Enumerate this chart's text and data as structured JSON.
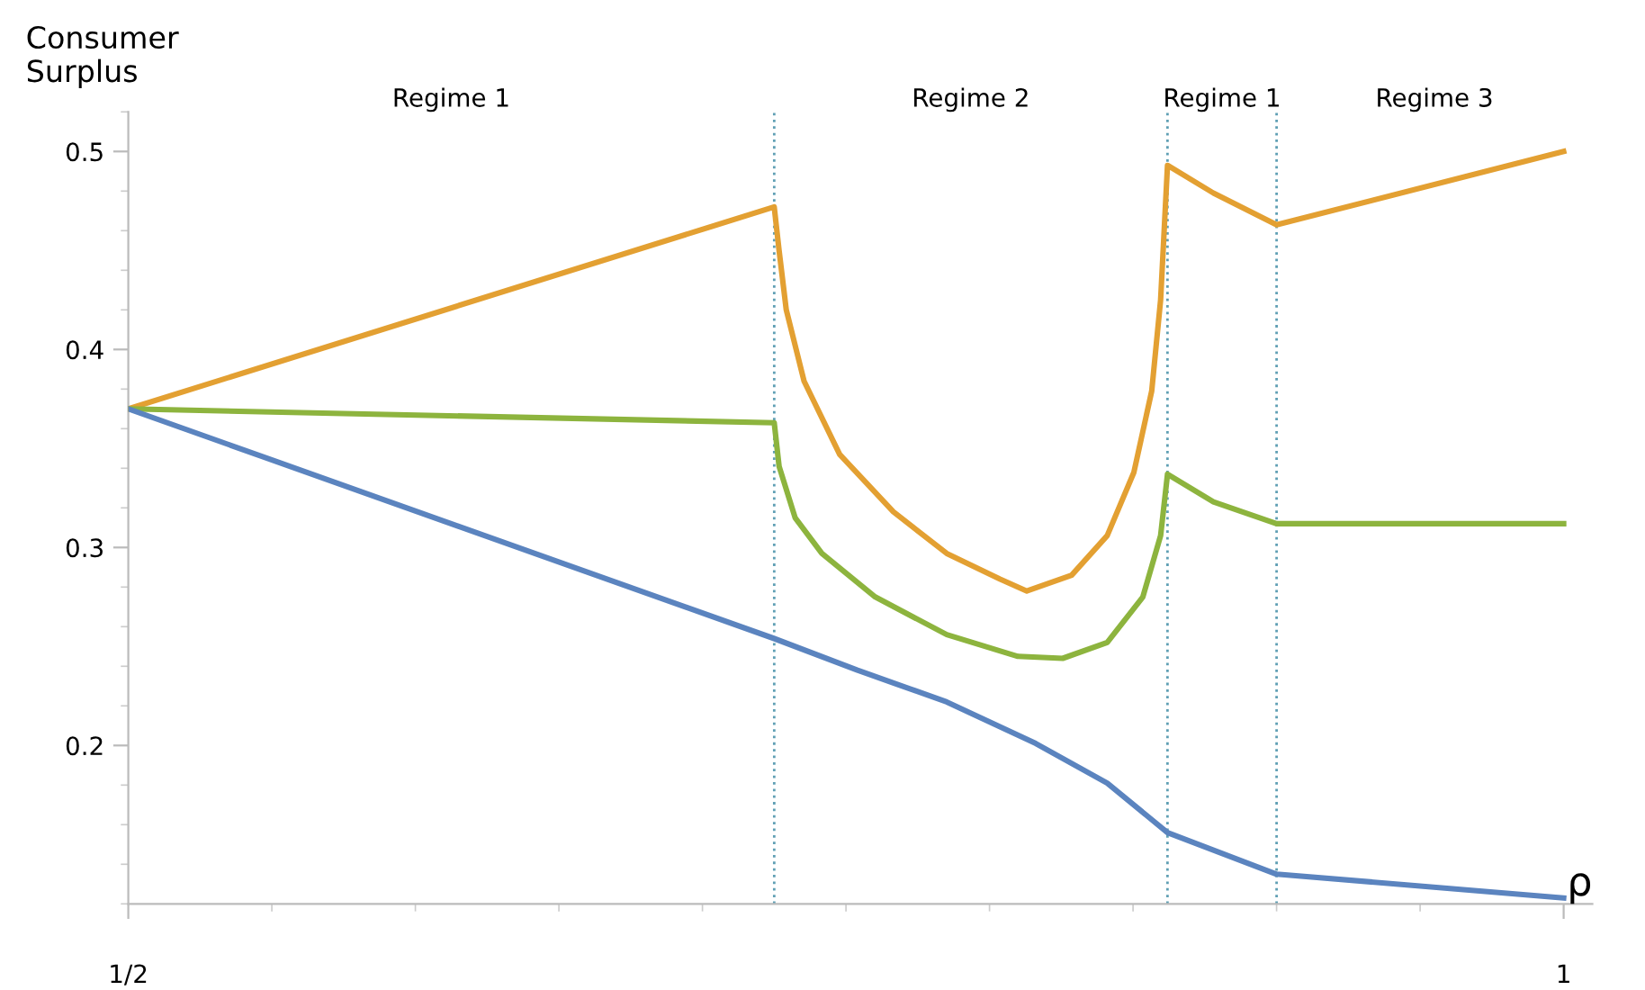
{
  "chart_data": {
    "type": "line",
    "ylabel": "Consumer\nSurplus",
    "xlabel": "ρ",
    "series": [
      {
        "color": "#e3a032",
        "x": [
          0.5,
          0.725,
          0.7267,
          0.7292,
          0.7354,
          0.7478,
          0.7665,
          0.7851,
          0.8037,
          0.813,
          0.8286,
          0.841,
          0.8503,
          0.8565,
          0.8596,
          0.862,
          0.878,
          0.9,
          1.0
        ],
        "values": [
          0.37,
          0.472,
          0.45,
          0.42,
          0.384,
          0.347,
          0.318,
          0.297,
          0.284,
          0.278,
          0.286,
          0.306,
          0.338,
          0.379,
          0.425,
          0.493,
          0.479,
          0.463,
          0.5
        ]
      },
      {
        "color": "#8db43e",
        "x": [
          0.5,
          0.725,
          0.7267,
          0.7323,
          0.7416,
          0.7602,
          0.7851,
          0.8099,
          0.8255,
          0.841,
          0.8534,
          0.8596,
          0.862,
          0.878,
          0.9,
          1.0
        ],
        "values": [
          0.37,
          0.363,
          0.341,
          0.315,
          0.297,
          0.275,
          0.256,
          0.245,
          0.244,
          0.252,
          0.275,
          0.306,
          0.337,
          0.323,
          0.312,
          0.312
        ]
      },
      {
        "color": "#5b84bf",
        "x": [
          0.5,
          0.725,
          0.754,
          0.7851,
          0.8161,
          0.841,
          0.862,
          0.9,
          1.0
        ],
        "values": [
          0.37,
          0.254,
          0.238,
          0.222,
          0.201,
          0.181,
          0.156,
          0.135,
          0.123
        ]
      }
    ],
    "xlim": [
      0.5,
      1.01
    ],
    "ylim": [
      0.12,
      0.52
    ],
    "xticks": [
      {
        "value": 0.5,
        "label": "1/2"
      },
      {
        "value": 1,
        "label": "1"
      }
    ],
    "yticks": [
      0.2,
      0.3,
      0.4,
      0.5
    ],
    "ref_lines": [
      {
        "axis": "x",
        "value": 0.725,
        "color": "#5f9fb4",
        "line_style": "dotted"
      },
      {
        "axis": "x",
        "value": 0.862,
        "color": "#5f9fb4",
        "line_style": "dotted"
      },
      {
        "axis": "x",
        "value": 0.9,
        "color": "#5f9fb4",
        "line_style": "dotted"
      }
    ],
    "annotations": [
      "Regime 1",
      "Regime 2",
      "Regime 1",
      "Regime 3"
    ],
    "grid": false,
    "marker": "none",
    "line_style": "solid"
  }
}
